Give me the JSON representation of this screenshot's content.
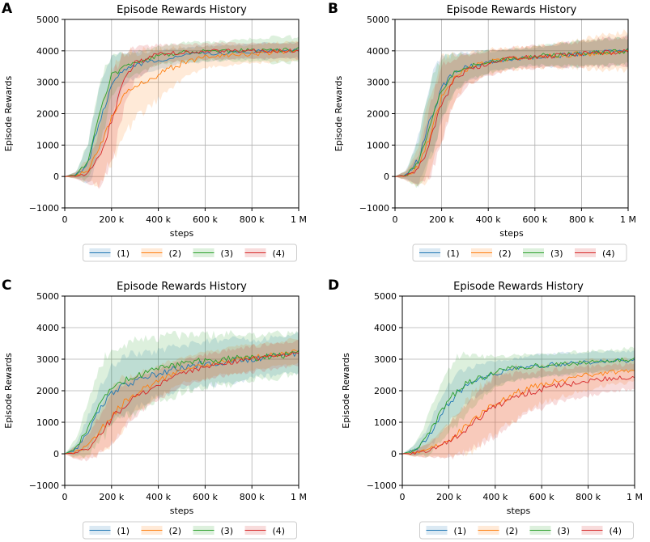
{
  "chart_data": [
    {
      "panel": "A",
      "type": "line",
      "title": "Episode Rewards History",
      "xlabel": "steps",
      "ylabel": "Episode Rewards",
      "xlim": [
        0,
        1000000
      ],
      "ylim": [
        -1000,
        5000
      ],
      "xticks": [
        0,
        200000,
        400000,
        600000,
        800000,
        1000000
      ],
      "xtick_labels": [
        "0",
        "200 k",
        "400 k",
        "600 k",
        "800 k",
        "1 M"
      ],
      "yticks": [
        -1000,
        0,
        1000,
        2000,
        3000,
        4000,
        5000
      ],
      "ytick_labels": [
        "−1000",
        "0",
        "1000",
        "2000",
        "3000",
        "4000",
        "5000"
      ],
      "grid": true,
      "legend": "bottom-center",
      "series": [
        {
          "name": "(1)",
          "color": "#1f77b4",
          "x": [
            0,
            50000,
            100000,
            150000,
            200000,
            250000,
            300000,
            400000,
            500000,
            600000,
            700000,
            800000,
            900000,
            1000000
          ],
          "values": [
            0,
            50,
            400,
            1800,
            2900,
            3400,
            3550,
            3700,
            3850,
            3900,
            3950,
            3980,
            4000,
            4030
          ],
          "band_width": [
            0,
            100,
            600,
            1200,
            900,
            500,
            400,
            300,
            250,
            250,
            250,
            250,
            250,
            250
          ]
        },
        {
          "name": "(2)",
          "color": "#ff7f0e",
          "x": [
            0,
            50000,
            100000,
            150000,
            200000,
            250000,
            300000,
            400000,
            500000,
            600000,
            700000,
            800000,
            900000,
            1000000
          ],
          "values": [
            0,
            30,
            200,
            900,
            1900,
            2600,
            2900,
            3250,
            3600,
            3800,
            3850,
            3900,
            3950,
            4000
          ],
          "band_width": [
            0,
            100,
            400,
            1100,
            1400,
            1300,
            1100,
            800,
            500,
            350,
            300,
            300,
            300,
            300
          ]
        },
        {
          "name": "(3)",
          "color": "#2ca02c",
          "x": [
            0,
            50000,
            100000,
            150000,
            200000,
            250000,
            300000,
            400000,
            500000,
            600000,
            700000,
            800000,
            900000,
            1000000
          ],
          "values": [
            0,
            50,
            500,
            2000,
            3200,
            3500,
            3600,
            3850,
            3950,
            3980,
            4000,
            4020,
            4030,
            4040
          ],
          "band_width": [
            0,
            100,
            600,
            1000,
            700,
            400,
            350,
            300,
            300,
            300,
            300,
            350,
            400,
            400
          ]
        },
        {
          "name": "(4)",
          "color": "#d62728",
          "x": [
            0,
            50000,
            100000,
            150000,
            200000,
            250000,
            300000,
            400000,
            500000,
            600000,
            700000,
            800000,
            900000,
            1000000
          ],
          "values": [
            0,
            30,
            100,
            600,
            1800,
            3000,
            3600,
            3900,
            3950,
            3980,
            4000,
            4000,
            4000,
            4000
          ],
          "band_width": [
            0,
            100,
            300,
            900,
            1300,
            900,
            500,
            300,
            250,
            250,
            250,
            250,
            250,
            250
          ]
        }
      ]
    },
    {
      "panel": "B",
      "type": "line",
      "title": "Episode Rewards History",
      "xlabel": "steps",
      "ylabel": "Episode Rewards",
      "xlim": [
        0,
        1000000
      ],
      "ylim": [
        -1000,
        5000
      ],
      "xticks": [
        0,
        200000,
        400000,
        600000,
        800000,
        1000000
      ],
      "xtick_labels": [
        "0",
        "200 k",
        "400 k",
        "600 k",
        "800 k",
        "1 M"
      ],
      "yticks": [
        -1000,
        0,
        1000,
        2000,
        3000,
        4000,
        5000
      ],
      "ytick_labels": [
        "−1000",
        "0",
        "1000",
        "2000",
        "3000",
        "4000",
        "5000"
      ],
      "grid": true,
      "legend": "bottom-center",
      "series": [
        {
          "name": "(1)",
          "color": "#1f77b4",
          "x": [
            0,
            50000,
            100000,
            150000,
            200000,
            250000,
            300000,
            400000,
            500000,
            600000,
            700000,
            800000,
            900000,
            1000000
          ],
          "values": [
            0,
            50,
            500,
            1800,
            2800,
            3300,
            3450,
            3650,
            3750,
            3800,
            3850,
            3900,
            3950,
            4000
          ],
          "band_width": [
            0,
            150,
            800,
            1300,
            1000,
            600,
            450,
            350,
            300,
            300,
            350,
            400,
            450,
            450
          ]
        },
        {
          "name": "(2)",
          "color": "#ff7f0e",
          "x": [
            0,
            50000,
            100000,
            150000,
            200000,
            250000,
            300000,
            400000,
            500000,
            600000,
            700000,
            800000,
            900000,
            1000000
          ],
          "values": [
            0,
            30,
            300,
            1300,
            2500,
            3100,
            3400,
            3650,
            3750,
            3800,
            3850,
            3900,
            3950,
            4000
          ],
          "band_width": [
            0,
            150,
            600,
            1300,
            1200,
            800,
            500,
            400,
            350,
            350,
            400,
            450,
            600,
            600
          ]
        },
        {
          "name": "(3)",
          "color": "#2ca02c",
          "x": [
            0,
            50000,
            100000,
            150000,
            200000,
            250000,
            300000,
            400000,
            500000,
            600000,
            700000,
            800000,
            900000,
            1000000
          ],
          "values": [
            0,
            50,
            400,
            1700,
            2800,
            3250,
            3450,
            3650,
            3750,
            3850,
            3880,
            3920,
            3960,
            4000
          ],
          "band_width": [
            0,
            150,
            700,
            1300,
            1000,
            600,
            450,
            350,
            300,
            300,
            350,
            400,
            400,
            400
          ]
        },
        {
          "name": "(4)",
          "color": "#d62728",
          "x": [
            0,
            50000,
            100000,
            150000,
            200000,
            250000,
            300000,
            400000,
            500000,
            600000,
            700000,
            800000,
            900000,
            1000000
          ],
          "values": [
            0,
            30,
            200,
            1100,
            2300,
            3000,
            3350,
            3600,
            3750,
            3800,
            3850,
            3900,
            3950,
            3980
          ],
          "band_width": [
            0,
            150,
            500,
            1200,
            1200,
            800,
            500,
            400,
            350,
            350,
            350,
            400,
            450,
            450
          ]
        }
      ]
    },
    {
      "panel": "C",
      "type": "line",
      "title": "Episode Rewards History",
      "xlabel": "steps",
      "ylabel": "Episode Rewards",
      "xlim": [
        0,
        1000000
      ],
      "ylim": [
        -1000,
        5000
      ],
      "xticks": [
        0,
        200000,
        400000,
        600000,
        800000,
        1000000
      ],
      "xtick_labels": [
        "0",
        "200 k",
        "400 k",
        "600 k",
        "800 k",
        "1 M"
      ],
      "yticks": [
        -1000,
        0,
        1000,
        2000,
        3000,
        4000,
        5000
      ],
      "ytick_labels": [
        "−1000",
        "0",
        "1000",
        "2000",
        "3000",
        "4000",
        "5000"
      ],
      "grid": true,
      "legend": "bottom-center",
      "series": [
        {
          "name": "(1)",
          "color": "#1f77b4",
          "x": [
            0,
            50000,
            100000,
            150000,
            200000,
            250000,
            300000,
            400000,
            500000,
            600000,
            700000,
            800000,
            900000,
            1000000
          ],
          "values": [
            0,
            150,
            700,
            1400,
            1900,
            2150,
            2300,
            2550,
            2750,
            2850,
            2950,
            3000,
            3100,
            3200
          ],
          "band_width": [
            0,
            200,
            500,
            700,
            900,
            900,
            900,
            700,
            700,
            700,
            700,
            600,
            600,
            600
          ]
        },
        {
          "name": "(2)",
          "color": "#ff7f0e",
          "x": [
            0,
            50000,
            100000,
            150000,
            200000,
            250000,
            300000,
            400000,
            500000,
            600000,
            700000,
            800000,
            900000,
            1000000
          ],
          "values": [
            0,
            50,
            300,
            700,
            1200,
            1600,
            1900,
            2300,
            2650,
            2800,
            2950,
            3050,
            3150,
            3250
          ],
          "band_width": [
            0,
            200,
            400,
            700,
            900,
            800,
            600,
            500,
            400,
            400,
            400,
            400,
            400,
            400
          ]
        },
        {
          "name": "(3)",
          "color": "#2ca02c",
          "x": [
            0,
            50000,
            100000,
            150000,
            200000,
            250000,
            300000,
            400000,
            500000,
            600000,
            700000,
            800000,
            900000,
            1000000
          ],
          "values": [
            0,
            200,
            800,
            1600,
            2100,
            2300,
            2450,
            2700,
            2850,
            2950,
            3000,
            3050,
            3100,
            3200
          ],
          "band_width": [
            0,
            300,
            800,
            1200,
            1300,
            1200,
            1100,
            1000,
            900,
            800,
            800,
            700,
            700,
            600
          ]
        },
        {
          "name": "(4)",
          "color": "#d62728",
          "x": [
            0,
            50000,
            100000,
            150000,
            200000,
            250000,
            300000,
            400000,
            500000,
            600000,
            700000,
            800000,
            900000,
            1000000
          ],
          "values": [
            0,
            30,
            200,
            600,
            1100,
            1500,
            1800,
            2200,
            2550,
            2750,
            2900,
            3000,
            3100,
            3200
          ],
          "band_width": [
            0,
            200,
            400,
            600,
            800,
            700,
            600,
            500,
            400,
            400,
            400,
            400,
            400,
            400
          ]
        }
      ]
    },
    {
      "panel": "D",
      "type": "line",
      "title": "Episode Rewards History",
      "xlabel": "steps",
      "ylabel": "Episode Rewards",
      "xlim": [
        0,
        1000000
      ],
      "ylim": [
        -1000,
        5000
      ],
      "xticks": [
        0,
        200000,
        400000,
        600000,
        800000,
        1000000
      ],
      "xtick_labels": [
        "0",
        "200 k",
        "400 k",
        "600 k",
        "800 k",
        "1 M"
      ],
      "yticks": [
        -1000,
        0,
        1000,
        2000,
        3000,
        4000,
        5000
      ],
      "ytick_labels": [
        "−1000",
        "0",
        "1000",
        "2000",
        "3000",
        "4000",
        "5000"
      ],
      "grid": true,
      "legend": "bottom-center",
      "series": [
        {
          "name": "(1)",
          "color": "#1f77b4",
          "x": [
            0,
            50000,
            100000,
            150000,
            200000,
            250000,
            300000,
            400000,
            500000,
            600000,
            700000,
            800000,
            900000,
            1000000
          ],
          "values": [
            0,
            100,
            400,
            1000,
            1600,
            2000,
            2250,
            2550,
            2700,
            2800,
            2850,
            2900,
            2950,
            2950
          ],
          "band_width": [
            0,
            150,
            300,
            500,
            600,
            600,
            500,
            400,
            350,
            350,
            350,
            300,
            300,
            300
          ]
        },
        {
          "name": "(2)",
          "color": "#ff7f0e",
          "x": [
            0,
            50000,
            100000,
            150000,
            200000,
            250000,
            300000,
            400000,
            500000,
            600000,
            700000,
            800000,
            900000,
            1000000
          ],
          "values": [
            0,
            20,
            100,
            250,
            450,
            700,
            1000,
            1600,
            1950,
            2200,
            2350,
            2500,
            2600,
            2650
          ],
          "band_width": [
            0,
            100,
            200,
            300,
            500,
            700,
            900,
            900,
            800,
            600,
            500,
            450,
            400,
            400
          ]
        },
        {
          "name": "(3)",
          "color": "#2ca02c",
          "x": [
            0,
            50000,
            100000,
            150000,
            200000,
            250000,
            300000,
            400000,
            500000,
            600000,
            700000,
            800000,
            900000,
            1000000
          ],
          "values": [
            0,
            100,
            450,
            1100,
            1700,
            2100,
            2300,
            2600,
            2750,
            2800,
            2850,
            2900,
            2950,
            3000
          ],
          "band_width": [
            0,
            150,
            500,
            900,
            1100,
            1000,
            800,
            500,
            400,
            350,
            350,
            350,
            350,
            350
          ]
        },
        {
          "name": "(4)",
          "color": "#d62728",
          "x": [
            0,
            50000,
            100000,
            150000,
            200000,
            250000,
            300000,
            400000,
            500000,
            600000,
            700000,
            800000,
            900000,
            1000000
          ],
          "values": [
            0,
            20,
            80,
            200,
            400,
            650,
            950,
            1500,
            1850,
            2050,
            2200,
            2300,
            2400,
            2450
          ],
          "band_width": [
            0,
            100,
            200,
            300,
            500,
            700,
            800,
            900,
            700,
            600,
            500,
            450,
            400,
            400
          ]
        }
      ]
    }
  ]
}
